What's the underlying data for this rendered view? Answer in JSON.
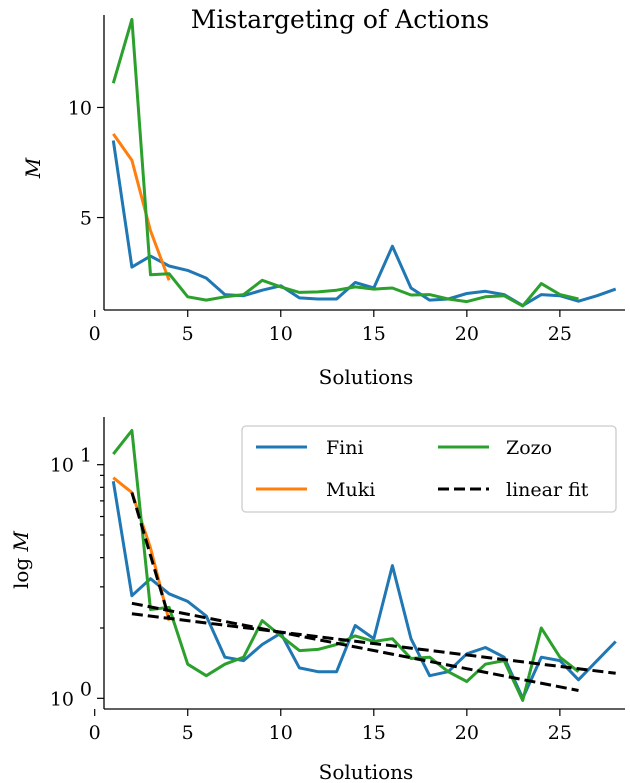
{
  "chart_data": [
    {
      "type": "line",
      "title": "Mistargeting of Actions",
      "xlabel": "Solutions",
      "ylabel": "M",
      "xlim": [
        0.5,
        28.5
      ],
      "ylim": [
        0.8,
        14.2
      ],
      "xticks": [
        0,
        5,
        10,
        15,
        20,
        25
      ],
      "yticks": [
        5,
        10
      ],
      "x_tick_labels": [
        "0",
        "5",
        "10",
        "15",
        "20",
        "25"
      ],
      "y_tick_labels": [
        "5",
        "10"
      ],
      "grid": false,
      "legend": false,
      "series": [
        {
          "name": "Fini",
          "color": "#1f77b4",
          "x": [
            1,
            2,
            3,
            4,
            5,
            6,
            7,
            8,
            9,
            10,
            11,
            12,
            13,
            14,
            15,
            16,
            17,
            18,
            19,
            20,
            21,
            22,
            23,
            24,
            25,
            26,
            27,
            28
          ],
          "y": [
            8.5,
            2.75,
            3.25,
            2.8,
            2.6,
            2.25,
            1.5,
            1.45,
            1.7,
            1.9,
            1.35,
            1.3,
            1.3,
            2.05,
            1.8,
            3.7,
            1.8,
            1.25,
            1.3,
            1.55,
            1.65,
            1.5,
            1.0,
            1.5,
            1.45,
            1.2,
            1.45,
            1.75
          ]
        },
        {
          "name": "Muki",
          "color": "#ff7f0e",
          "x": [
            1,
            2,
            3,
            4
          ],
          "y": [
            8.8,
            7.6,
            4.4,
            2.15
          ]
        },
        {
          "name": "Zozo",
          "color": "#2ca02c",
          "x": [
            1,
            2,
            3,
            4,
            5,
            6,
            7,
            8,
            9,
            10,
            11,
            12,
            13,
            14,
            15,
            16,
            17,
            18,
            19,
            20,
            21,
            22,
            23,
            24,
            25,
            26
          ],
          "y": [
            11.1,
            14.0,
            2.4,
            2.45,
            1.4,
            1.25,
            1.4,
            1.5,
            2.15,
            1.85,
            1.6,
            1.62,
            1.7,
            1.85,
            1.75,
            1.8,
            1.48,
            1.5,
            1.3,
            1.18,
            1.4,
            1.45,
            0.98,
            2.0,
            1.5,
            1.3
          ]
        }
      ]
    },
    {
      "type": "line",
      "xlabel": "Solutions",
      "ylabel": "log M",
      "yscale": "log",
      "xlim": [
        0.5,
        28.5
      ],
      "ylim": [
        0.9,
        16.0
      ],
      "xticks": [
        0,
        5,
        10,
        15,
        20,
        25
      ],
      "x_tick_labels": [
        "0",
        "5",
        "10",
        "15",
        "20",
        "25"
      ],
      "yticks": [
        1,
        10
      ],
      "y_tick_base": "10",
      "y_tick_exponents": [
        "0",
        "1"
      ],
      "grid": false,
      "legend": {
        "placement": "top-right",
        "columns": 2,
        "entries": [
          {
            "label": "Fini",
            "color": "#1f77b4",
            "style": "solid"
          },
          {
            "label": "Zozo",
            "color": "#2ca02c",
            "style": "solid"
          },
          {
            "label": "Muki",
            "color": "#ff7f0e",
            "style": "solid"
          },
          {
            "label": "linear fit",
            "color": "#000000",
            "style": "dashed"
          }
        ]
      },
      "series": [
        {
          "name": "Fini",
          "color": "#1f77b4",
          "x": [
            1,
            2,
            3,
            4,
            5,
            6,
            7,
            8,
            9,
            10,
            11,
            12,
            13,
            14,
            15,
            16,
            17,
            18,
            19,
            20,
            21,
            22,
            23,
            24,
            25,
            26,
            27,
            28
          ],
          "y": [
            8.5,
            2.75,
            3.25,
            2.8,
            2.6,
            2.25,
            1.5,
            1.45,
            1.7,
            1.9,
            1.35,
            1.3,
            1.3,
            2.05,
            1.8,
            3.7,
            1.8,
            1.25,
            1.3,
            1.55,
            1.65,
            1.5,
            1.0,
            1.5,
            1.45,
            1.2,
            1.45,
            1.75
          ]
        },
        {
          "name": "Muki",
          "color": "#ff7f0e",
          "x": [
            1,
            2,
            3,
            4
          ],
          "y": [
            8.8,
            7.6,
            4.4,
            2.15
          ]
        },
        {
          "name": "Zozo",
          "color": "#2ca02c",
          "x": [
            1,
            2,
            3,
            4,
            5,
            6,
            7,
            8,
            9,
            10,
            11,
            12,
            13,
            14,
            15,
            16,
            17,
            18,
            19,
            20,
            21,
            22,
            23,
            24,
            25,
            26
          ],
          "y": [
            11.1,
            14.0,
            2.4,
            2.45,
            1.4,
            1.25,
            1.4,
            1.5,
            2.15,
            1.85,
            1.6,
            1.62,
            1.7,
            1.85,
            1.75,
            1.8,
            1.48,
            1.5,
            1.3,
            1.18,
            1.4,
            1.45,
            0.98,
            2.0,
            1.5,
            1.3
          ]
        }
      ],
      "fits": [
        {
          "name": "linear fit",
          "color": "#000000",
          "x": [
            2,
            4
          ],
          "y": [
            7.6,
            2.2
          ]
        },
        {
          "name": "linear fit",
          "color": "#000000",
          "x": [
            2,
            28
          ],
          "y": [
            2.3,
            1.28
          ]
        },
        {
          "name": "linear fit",
          "color": "#000000",
          "x": [
            2,
            26
          ],
          "y": [
            2.55,
            1.08
          ]
        }
      ]
    }
  ]
}
